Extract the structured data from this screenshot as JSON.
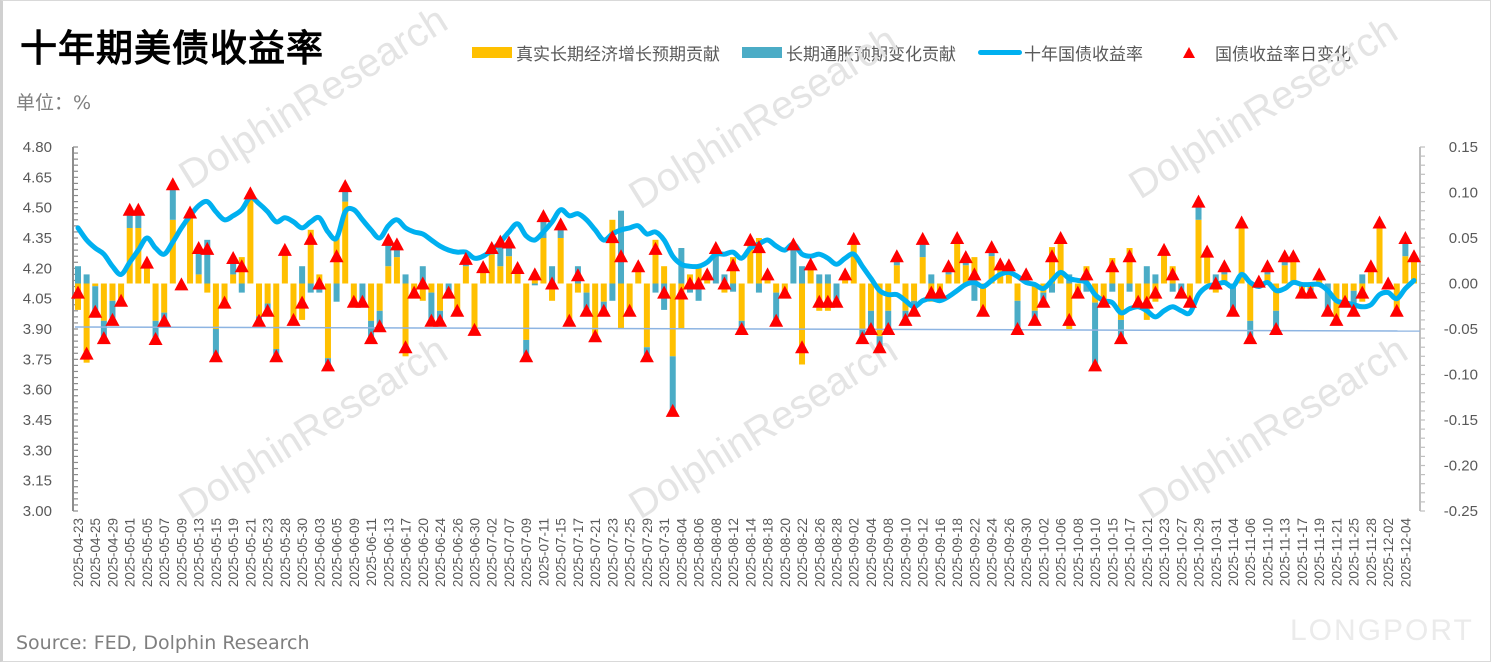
{
  "title": "十年期美债收益率",
  "unit_label": "单位：%",
  "source": "Source: FED, Dolphin Research",
  "watermarks": [
    "DolphinResearch",
    "LONGPORT"
  ],
  "colors": {
    "real": "#FFC000",
    "inflation": "#4BACC6",
    "yield": "#00B0F0",
    "change": "#FF0000",
    "ref_line": "#8DB4E2"
  },
  "legend": [
    {
      "label": "真实长期经济增长预期贡献",
      "type": "bar"
    },
    {
      "label": "长期通胀预期变化贡献",
      "type": "bar"
    },
    {
      "label": "十年国债收益率",
      "type": "line"
    },
    {
      "label": "国债收益率日变化",
      "type": "marker"
    }
  ],
  "chart_data": {
    "type": "bar+line",
    "title": "十年期美债收益率",
    "left_axis": {
      "label": "单位：%",
      "range": [
        3.0,
        4.8
      ],
      "ticks": [
        "4.80",
        "4.65",
        "4.50",
        "4.35",
        "4.20",
        "4.05",
        "3.90",
        "3.75",
        "3.60",
        "3.45",
        "3.30",
        "3.15",
        "3.00"
      ]
    },
    "right_axis": {
      "range": [
        -0.25,
        0.15
      ],
      "ticks": [
        "0.15",
        "0.10",
        "0.05",
        "0.00",
        "-0.05",
        "-0.10",
        "-0.15",
        "-0.20",
        "-0.25"
      ]
    },
    "x_tick_labels": [
      "2025-04-23",
      "2025-04-25",
      "2025-04-29",
      "2025-05-01",
      "2025-05-05",
      "2025-05-07",
      "2025-05-09",
      "2025-05-13",
      "2025-05-15",
      "2025-05-19",
      "2025-05-21",
      "2025-05-23",
      "2025-05-28",
      "2025-05-30",
      "2025-06-03",
      "2025-06-05",
      "2025-06-09",
      "2025-06-11",
      "2025-06-13",
      "2025-06-17",
      "2025-06-20",
      "2025-06-24",
      "2025-06-26",
      "2025-06-30",
      "2025-07-02",
      "2025-07-07",
      "2025-07-09",
      "2025-07-11",
      "2025-07-15",
      "2025-07-17",
      "2025-07-21",
      "2025-07-23",
      "2025-07-25",
      "2025-07-29",
      "2025-07-31",
      "2025-08-04",
      "2025-08-06",
      "2025-08-08",
      "2025-08-12",
      "2025-08-14",
      "2025-08-18",
      "2025-08-20",
      "2025-08-22",
      "2025-08-26",
      "2025-08-28",
      "2025-09-02",
      "2025-09-04",
      "2025-09-08",
      "2025-09-10",
      "2025-09-12",
      "2025-09-16",
      "2025-09-18",
      "2025-09-22",
      "2025-09-24",
      "2025-09-26",
      "2025-09-30",
      "2025-10-02",
      "2025-10-06",
      "2025-10-08",
      "2025-10-10",
      "2025-10-15",
      "2025-10-17",
      "2025-10-21",
      "2025-10-23",
      "2025-10-27",
      "2025-10-29",
      "2025-10-31",
      "2025-11-04",
      "2025-11-06",
      "2025-11-10",
      "2025-11-13",
      "2025-11-17",
      "2025-11-19",
      "2025-11-21",
      "2025-11-25",
      "2025-11-28",
      "2025-12-02",
      "2025-12-04"
    ],
    "series": [
      {
        "name": "十年国债收益率",
        "axis": "left",
        "type": "line",
        "values": [
          4.4,
          4.34,
          4.3,
          4.27,
          4.21,
          4.17,
          4.23,
          4.29,
          4.35,
          4.3,
          4.27,
          4.33,
          4.4,
          4.46,
          4.51,
          4.53,
          4.48,
          4.44,
          4.46,
          4.49,
          4.55,
          4.52,
          4.48,
          4.43,
          4.45,
          4.43,
          4.4,
          4.43,
          4.45,
          4.38,
          4.35,
          4.48,
          4.49,
          4.44,
          4.39,
          4.35,
          4.41,
          4.44,
          4.4,
          4.38,
          4.37,
          4.34,
          4.31,
          4.29,
          4.28,
          4.28,
          4.25,
          4.26,
          4.29,
          4.33,
          4.38,
          4.42,
          4.36,
          4.34,
          4.38,
          4.43,
          4.49,
          4.46,
          4.47,
          4.44,
          4.39,
          4.34,
          4.37,
          4.39,
          4.4,
          4.41,
          4.37,
          4.38,
          4.34,
          4.26,
          4.22,
          4.21,
          4.21,
          4.23,
          4.27,
          4.27,
          4.28,
          4.25,
          4.3,
          4.32,
          4.34,
          4.31,
          4.29,
          4.32,
          4.27,
          4.26,
          4.27,
          4.25,
          4.22,
          4.25,
          4.27,
          4.21,
          4.15,
          4.09,
          4.07,
          4.07,
          4.04,
          4.01,
          4.04,
          4.05,
          4.04,
          4.06,
          4.09,
          4.12,
          4.13,
          4.11,
          4.14,
          4.17,
          4.18,
          4.16,
          4.13,
          4.12,
          4.1,
          4.14,
          4.18,
          4.15,
          4.14,
          4.13,
          4.07,
          4.04,
          4.03,
          3.98,
          4.0,
          4.01,
          3.99,
          3.96,
          3.99,
          4.01,
          3.99,
          3.98,
          4.07,
          4.11,
          4.12,
          4.13,
          4.11,
          4.17,
          4.13,
          4.11,
          4.13,
          4.09,
          4.1,
          4.13,
          4.12,
          4.12,
          4.12,
          4.09,
          4.04,
          4.03,
          4.02,
          4.01,
          4.02,
          4.07,
          4.08,
          4.05,
          4.1,
          4.14
        ]
      },
      {
        "name": "真实长期经济增长预期贡献",
        "axis": "right",
        "type": "stacked-bar",
        "values": [
          -0.029,
          -0.087,
          -0.003,
          -0.041,
          -0.019,
          -0.019,
          0.061,
          0.061,
          0.019,
          -0.041,
          -0.032,
          0.07,
          0.0,
          0.078,
          0.01,
          -0.01,
          -0.05,
          -0.021,
          0.01,
          0.029,
          0.099,
          -0.036,
          -0.022,
          -0.072,
          0.037,
          -0.04,
          -0.04,
          0.059,
          0.01,
          -0.082,
          0.05,
          0.09,
          -0.02,
          0.0,
          -0.041,
          -0.03,
          0.019,
          0.029,
          -0.08,
          -0.01,
          -0.019,
          -0.01,
          -0.03,
          0.0,
          -0.03,
          0.019,
          -0.051,
          0.018,
          0.032,
          0.019,
          0.03,
          0.017,
          -0.062,
          0.012,
          0.05,
          -0.019,
          0.05,
          -0.041,
          -0.01,
          -0.01,
          -0.058,
          -0.02,
          0.07,
          -0.05,
          -0.029,
          0.019,
          -0.07,
          0.048,
          0.019,
          -0.08,
          -0.05,
          0.01,
          0.019,
          0.01,
          0.0,
          -0.01,
          0.029,
          -0.041,
          0.048,
          0.05,
          0.01,
          -0.01,
          -0.01,
          0.0,
          -0.089,
          0.021,
          -0.03,
          -0.03,
          0.0,
          0.01,
          0.049,
          -0.05,
          -0.03,
          -0.058,
          -0.03,
          0.02,
          -0.03,
          -0.019,
          0.029,
          -0.02,
          -0.01,
          0.01,
          0.05,
          0.02,
          0.029,
          -0.03,
          0.03,
          0.021,
          0.02,
          -0.019,
          0.01,
          -0.03,
          -0.01,
          0.04,
          0.045,
          -0.05,
          -0.01,
          0.019,
          -0.021,
          -0.02,
          0.028,
          -0.04,
          0.039,
          -0.02,
          -0.04,
          -0.02,
          0.032,
          0.019,
          0.0,
          -0.02,
          0.07,
          0.035,
          -0.01,
          0.01,
          0.0,
          0.061,
          -0.041,
          0.002,
          0.01,
          -0.03,
          0.02,
          0.03,
          -0.01,
          -0.005,
          0.01,
          0.0,
          -0.04,
          -0.02,
          -0.008,
          -0.02,
          0.019,
          0.061,
          0.0,
          -0.03,
          0.03,
          0.03
        ]
      },
      {
        "name": "长期通胀预期变化贡献",
        "axis": "right",
        "type": "stacked-bar",
        "values": [
          0.019,
          0.01,
          -0.028,
          -0.019,
          -0.021,
          0.0,
          0.02,
          0.02,
          0.004,
          -0.02,
          -0.009,
          0.039,
          -0.001,
          0.0,
          0.029,
          0.048,
          -0.03,
          0.0,
          0.018,
          -0.01,
          0.0,
          -0.005,
          -0.008,
          -0.008,
          0.0,
          0.0,
          0.019,
          -0.01,
          -0.01,
          -0.008,
          -0.02,
          0.017,
          0.0,
          -0.02,
          -0.019,
          -0.017,
          0.029,
          0.014,
          0.01,
          0.0,
          0.019,
          -0.031,
          -0.011,
          -0.01,
          0.0,
          0.008,
          0.0,
          0.0,
          0.007,
          0.027,
          0.015,
          0.0,
          -0.018,
          -0.002,
          0.024,
          0.019,
          0.015,
          0.0,
          0.019,
          -0.02,
          0.0,
          -0.01,
          -0.019,
          0.08,
          -0.001,
          0.0,
          -0.01,
          -0.01,
          -0.029,
          -0.06,
          0.039,
          -0.01,
          -0.019,
          0.0,
          0.039,
          0.01,
          -0.009,
          -0.009,
          0.0,
          -0.01,
          0.0,
          -0.031,
          0.0,
          0.043,
          0.019,
          0.0,
          0.01,
          0.01,
          -0.02,
          0.0,
          0.0,
          -0.01,
          -0.02,
          -0.012,
          -0.02,
          0.01,
          -0.01,
          -0.011,
          0.02,
          0.01,
          0.0,
          0.009,
          0.0,
          0.009,
          -0.019,
          0.0,
          0.01,
          0.0,
          0.0,
          -0.031,
          0.0,
          -0.01,
          -0.01,
          -0.01,
          0.005,
          0.01,
          0.0,
          -0.009,
          -0.069,
          0.0,
          -0.009,
          -0.02,
          -0.009,
          0.0,
          0.019,
          0.01,
          0.005,
          -0.009,
          -0.01,
          0.0,
          0.02,
          0.0,
          0.01,
          0.009,
          -0.03,
          0.006,
          -0.019,
          0.0,
          0.009,
          -0.02,
          0.01,
          0.0,
          0.0,
          -0.005,
          0.0,
          -0.03,
          0.0,
          0.0,
          -0.022,
          0.01,
          0.0,
          0.006,
          0.0,
          0.0,
          0.02,
          0.0
        ]
      },
      {
        "name": "国债收益率日变化",
        "axis": "right",
        "type": "marker",
        "values": [
          -0.01,
          -0.077,
          -0.031,
          -0.06,
          -0.04,
          -0.019,
          0.081,
          0.081,
          0.023,
          -0.061,
          -0.041,
          0.109,
          -0.001,
          0.078,
          0.039,
          0.038,
          -0.08,
          -0.021,
          0.028,
          0.019,
          0.099,
          -0.041,
          -0.03,
          -0.08,
          0.037,
          -0.04,
          -0.021,
          0.049,
          0.0,
          -0.09,
          0.03,
          0.107,
          -0.02,
          -0.02,
          -0.06,
          -0.047,
          0.048,
          0.043,
          -0.07,
          -0.01,
          0.0,
          -0.041,
          -0.041,
          -0.01,
          -0.03,
          0.027,
          -0.051,
          0.018,
          0.039,
          0.046,
          0.045,
          0.017,
          -0.08,
          0.01,
          0.074,
          0.0,
          0.065,
          -0.041,
          0.009,
          -0.03,
          -0.058,
          -0.03,
          0.051,
          0.03,
          -0.03,
          0.019,
          -0.08,
          0.038,
          -0.01,
          -0.14,
          -0.011,
          0.0,
          0.0,
          0.01,
          0.039,
          0.0,
          0.02,
          -0.05,
          0.048,
          0.04,
          0.01,
          -0.041,
          -0.01,
          0.043,
          -0.07,
          0.021,
          -0.02,
          -0.02,
          -0.02,
          0.01,
          0.049,
          -0.06,
          -0.05,
          -0.07,
          -0.05,
          0.03,
          -0.04,
          -0.03,
          0.049,
          -0.01,
          -0.01,
          0.019,
          0.05,
          0.029,
          0.01,
          -0.03,
          0.04,
          0.021,
          0.02,
          -0.05,
          0.01,
          -0.04,
          -0.02,
          0.03,
          0.05,
          -0.04,
          -0.01,
          0.01,
          -0.09,
          -0.02,
          0.019,
          -0.06,
          0.03,
          -0.02,
          -0.021,
          -0.01,
          0.037,
          0.01,
          -0.01,
          -0.02,
          0.09,
          0.035,
          0.0,
          0.019,
          -0.03,
          0.067,
          -0.06,
          0.002,
          0.019,
          -0.05,
          0.03,
          0.03,
          -0.01,
          -0.01,
          0.01,
          -0.03,
          -0.04,
          -0.02,
          -0.03,
          -0.01,
          0.019,
          0.067,
          0.0,
          -0.03,
          0.05,
          0.03
        ]
      },
      {
        "name": "reference",
        "axis": "left",
        "type": "line",
        "values": [
          3.91,
          3.89
        ]
      }
    ],
    "grid": false,
    "legend_position": "top-right"
  }
}
